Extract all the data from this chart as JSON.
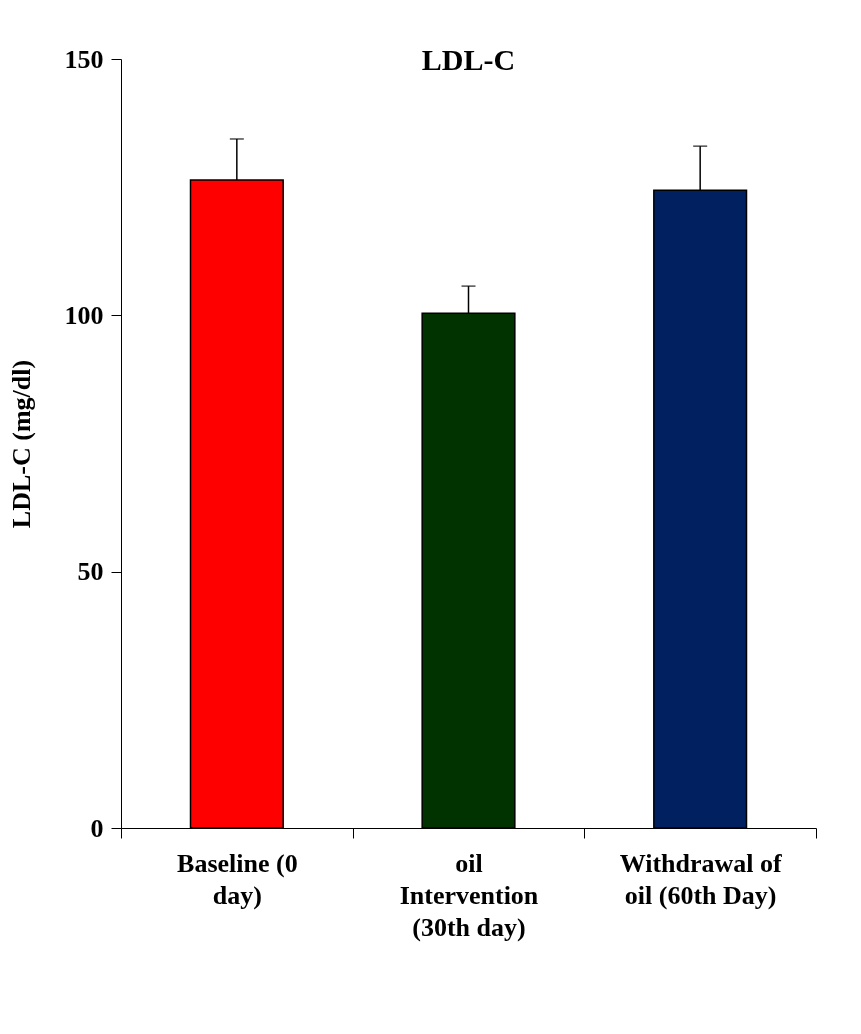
{
  "chart_data": {
    "type": "bar",
    "title": "LDL-C",
    "ylabel": "LDL-C (mg/dl)",
    "categories": [
      "Baseline (0 day)",
      "oil Intervention (30th day)",
      "Withdrawal of oil (60th Day)"
    ],
    "values": [
      126.4,
      100.4,
      124.4
    ],
    "colors": [
      "#ff0000",
      "#003300",
      "#002060"
    ],
    "errors": [
      [
        126.4,
        134.4
      ],
      [
        100.4,
        105.7
      ],
      [
        124.4,
        133.0
      ]
    ],
    "ylim": [
      0,
      150
    ],
    "yticks": [
      0,
      50,
      100,
      150
    ]
  }
}
